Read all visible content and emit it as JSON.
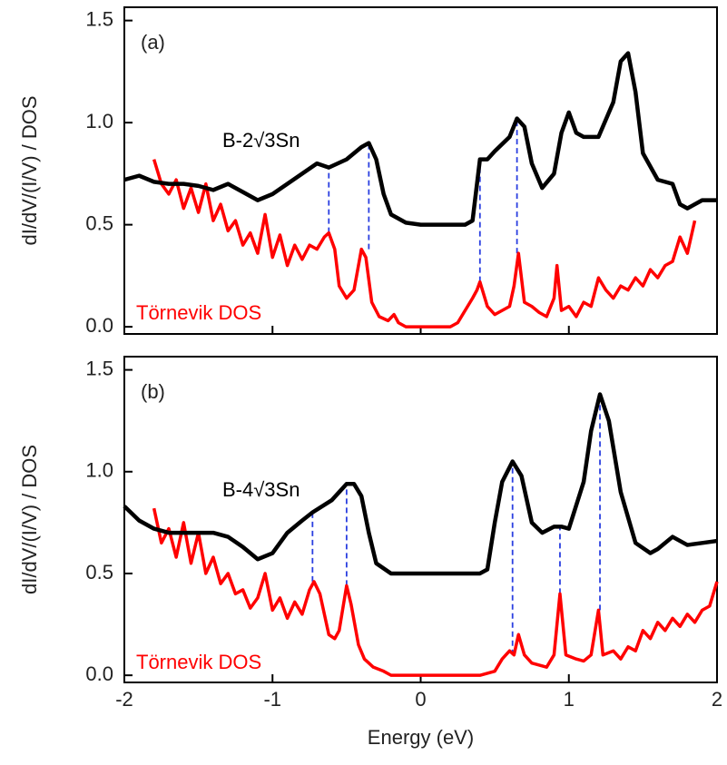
{
  "chart_data": [
    {
      "type": "line",
      "panel_label": "(a)",
      "ylabel": "dI/dV/(I/V) / DOS",
      "xlim": [
        -2,
        2
      ],
      "xticks": [
        -2,
        -1,
        0,
        1,
        2
      ],
      "show_xtick_labels": false,
      "ylim": [
        -0.035,
        1.565
      ],
      "yticks": [
        {
          "value": 0,
          "label": "0.0"
        },
        {
          "value": 0.5,
          "label": "0.5"
        },
        {
          "value": 1,
          "label": "1.0"
        },
        {
          "value": 1.5,
          "label": "1.5"
        }
      ],
      "series": [
        {
          "name": "B-2√3Sn",
          "color": "#000000",
          "x": [
            -2.0,
            -1.9,
            -1.8,
            -1.7,
            -1.6,
            -1.5,
            -1.4,
            -1.3,
            -1.2,
            -1.1,
            -1.0,
            -0.9,
            -0.8,
            -0.7,
            -0.62,
            -0.5,
            -0.4,
            -0.35,
            -0.3,
            -0.25,
            -0.2,
            -0.1,
            0.0,
            0.1,
            0.2,
            0.3,
            0.35,
            0.4,
            0.45,
            0.5,
            0.6,
            0.65,
            0.7,
            0.75,
            0.82,
            0.9,
            0.95,
            1.0,
            1.05,
            1.1,
            1.2,
            1.3,
            1.35,
            1.4,
            1.45,
            1.5,
            1.6,
            1.7,
            1.75,
            1.8,
            1.9,
            2.0
          ],
          "values": [
            0.72,
            0.74,
            0.71,
            0.7,
            0.7,
            0.69,
            0.67,
            0.7,
            0.66,
            0.62,
            0.65,
            0.7,
            0.75,
            0.8,
            0.78,
            0.82,
            0.88,
            0.9,
            0.82,
            0.65,
            0.55,
            0.51,
            0.5,
            0.5,
            0.5,
            0.5,
            0.52,
            0.82,
            0.82,
            0.86,
            0.93,
            1.02,
            0.98,
            0.8,
            0.68,
            0.75,
            0.95,
            1.05,
            0.95,
            0.93,
            0.93,
            1.1,
            1.3,
            1.34,
            1.15,
            0.85,
            0.72,
            0.7,
            0.6,
            0.58,
            0.62,
            0.62
          ]
        },
        {
          "name": "Törnevik DOS",
          "color": "#ff0000",
          "x": [
            -1.8,
            -1.75,
            -1.7,
            -1.65,
            -1.6,
            -1.55,
            -1.5,
            -1.45,
            -1.4,
            -1.35,
            -1.3,
            -1.25,
            -1.2,
            -1.15,
            -1.1,
            -1.05,
            -1.0,
            -0.95,
            -0.9,
            -0.85,
            -0.8,
            -0.75,
            -0.7,
            -0.65,
            -0.62,
            -0.58,
            -0.55,
            -0.5,
            -0.45,
            -0.4,
            -0.37,
            -0.33,
            -0.28,
            -0.22,
            -0.18,
            -0.15,
            -0.1,
            0.0,
            0.1,
            0.2,
            0.25,
            0.3,
            0.35,
            0.38,
            0.4,
            0.45,
            0.5,
            0.55,
            0.6,
            0.63,
            0.66,
            0.7,
            0.75,
            0.8,
            0.85,
            0.9,
            0.92,
            0.95,
            1.0,
            1.05,
            1.1,
            1.15,
            1.2,
            1.25,
            1.3,
            1.35,
            1.4,
            1.45,
            1.5,
            1.55,
            1.6,
            1.65,
            1.7,
            1.75,
            1.8,
            1.85
          ],
          "values": [
            0.82,
            0.7,
            0.65,
            0.72,
            0.58,
            0.68,
            0.56,
            0.7,
            0.52,
            0.6,
            0.47,
            0.52,
            0.4,
            0.46,
            0.36,
            0.55,
            0.34,
            0.45,
            0.3,
            0.4,
            0.33,
            0.4,
            0.38,
            0.44,
            0.46,
            0.38,
            0.2,
            0.14,
            0.18,
            0.38,
            0.34,
            0.12,
            0.05,
            0.03,
            0.06,
            0.02,
            0.0,
            0.0,
            0.0,
            0.0,
            0.02,
            0.08,
            0.14,
            0.18,
            0.22,
            0.1,
            0.06,
            0.08,
            0.1,
            0.2,
            0.36,
            0.12,
            0.1,
            0.07,
            0.05,
            0.14,
            0.3,
            0.08,
            0.1,
            0.05,
            0.12,
            0.1,
            0.24,
            0.18,
            0.14,
            0.2,
            0.18,
            0.24,
            0.2,
            0.28,
            0.24,
            0.3,
            0.32,
            0.44,
            0.36,
            0.52
          ]
        }
      ],
      "guides": [
        {
          "x": -0.62,
          "y": [
            0.46,
            0.78
          ]
        },
        {
          "x": -0.35,
          "y": [
            0.38,
            0.9
          ]
        },
        {
          "x": 0.4,
          "y": [
            0.22,
            0.82
          ]
        },
        {
          "x": 0.65,
          "y": [
            0.36,
            1.02
          ]
        }
      ],
      "guide_color": "#2a3fe0"
    },
    {
      "type": "line",
      "panel_label": "(b)",
      "ylabel": "dI/dV/(I/V) / DOS",
      "xlabel": "Energy (eV)",
      "xlim": [
        -2,
        2
      ],
      "xticks": [
        -2,
        -1,
        0,
        1,
        2
      ],
      "show_xtick_labels": true,
      "ylim": [
        -0.035,
        1.565
      ],
      "yticks": [
        {
          "value": 0,
          "label": "0.0"
        },
        {
          "value": 0.5,
          "label": "0.5"
        },
        {
          "value": 1,
          "label": "1.0"
        },
        {
          "value": 1.5,
          "label": "1.5"
        }
      ],
      "series": [
        {
          "name": "B-4√3Sn",
          "color": "#000000",
          "x": [
            -2.0,
            -1.9,
            -1.8,
            -1.7,
            -1.6,
            -1.5,
            -1.4,
            -1.3,
            -1.2,
            -1.1,
            -1.0,
            -0.9,
            -0.8,
            -0.73,
            -0.6,
            -0.5,
            -0.45,
            -0.4,
            -0.35,
            -0.3,
            -0.2,
            0.0,
            0.2,
            0.4,
            0.45,
            0.5,
            0.55,
            0.62,
            0.68,
            0.75,
            0.82,
            0.9,
            0.95,
            1.0,
            1.1,
            1.15,
            1.21,
            1.27,
            1.35,
            1.45,
            1.55,
            1.6,
            1.7,
            1.8,
            1.9,
            2.0
          ],
          "values": [
            0.83,
            0.76,
            0.72,
            0.7,
            0.7,
            0.7,
            0.7,
            0.68,
            0.63,
            0.57,
            0.6,
            0.7,
            0.76,
            0.8,
            0.86,
            0.94,
            0.94,
            0.88,
            0.7,
            0.55,
            0.5,
            0.5,
            0.5,
            0.5,
            0.52,
            0.75,
            0.95,
            1.05,
            0.98,
            0.75,
            0.7,
            0.73,
            0.73,
            0.72,
            0.95,
            1.2,
            1.38,
            1.25,
            0.9,
            0.65,
            0.6,
            0.62,
            0.68,
            0.64,
            0.65,
            0.66
          ]
        },
        {
          "name": "Törnevik DOS",
          "color": "#ff0000",
          "x": [
            -1.8,
            -1.75,
            -1.7,
            -1.65,
            -1.6,
            -1.55,
            -1.5,
            -1.45,
            -1.4,
            -1.35,
            -1.3,
            -1.25,
            -1.2,
            -1.15,
            -1.1,
            -1.05,
            -1.0,
            -0.95,
            -0.9,
            -0.85,
            -0.8,
            -0.75,
            -0.72,
            -0.68,
            -0.62,
            -0.58,
            -0.55,
            -0.5,
            -0.47,
            -0.42,
            -0.38,
            -0.32,
            -0.25,
            -0.2,
            0.0,
            0.2,
            0.4,
            0.5,
            0.55,
            0.6,
            0.63,
            0.66,
            0.7,
            0.75,
            0.8,
            0.85,
            0.9,
            0.94,
            0.98,
            1.05,
            1.1,
            1.15,
            1.2,
            1.23,
            1.3,
            1.35,
            1.4,
            1.45,
            1.5,
            1.55,
            1.6,
            1.65,
            1.7,
            1.75,
            1.8,
            1.85,
            1.9,
            1.95,
            2.0
          ],
          "values": [
            0.82,
            0.65,
            0.72,
            0.58,
            0.75,
            0.55,
            0.7,
            0.5,
            0.58,
            0.45,
            0.5,
            0.4,
            0.42,
            0.33,
            0.38,
            0.5,
            0.32,
            0.38,
            0.28,
            0.36,
            0.3,
            0.42,
            0.46,
            0.4,
            0.2,
            0.18,
            0.22,
            0.44,
            0.35,
            0.15,
            0.08,
            0.04,
            0.02,
            0.0,
            0.0,
            0.0,
            0.0,
            0.02,
            0.08,
            0.12,
            0.1,
            0.2,
            0.1,
            0.06,
            0.05,
            0.04,
            0.1,
            0.4,
            0.1,
            0.08,
            0.07,
            0.1,
            0.32,
            0.1,
            0.12,
            0.08,
            0.14,
            0.12,
            0.22,
            0.18,
            0.26,
            0.22,
            0.28,
            0.24,
            0.3,
            0.26,
            0.32,
            0.34,
            0.46
          ]
        }
      ],
      "guides": [
        {
          "x": -0.73,
          "y": [
            0.46,
            0.8
          ]
        },
        {
          "x": -0.5,
          "y": [
            0.44,
            0.94
          ]
        },
        {
          "x": 0.62,
          "y": [
            0.1,
            1.05
          ]
        },
        {
          "x": 0.94,
          "y": [
            0.4,
            0.73
          ]
        },
        {
          "x": 1.21,
          "y": [
            0.32,
            1.38
          ]
        }
      ],
      "guide_color": "#2a3fe0"
    }
  ]
}
